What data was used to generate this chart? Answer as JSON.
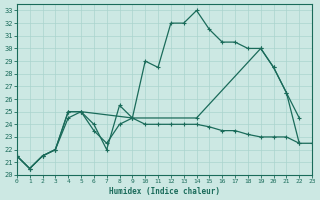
{
  "xlabel": "Humidex (Indice chaleur)",
  "bg_color": "#cce8e3",
  "grid_color": "#aad4ce",
  "line_color": "#1a6b5a",
  "xlim": [
    0,
    23
  ],
  "ylim": [
    20,
    33.5
  ],
  "xticks": [
    0,
    1,
    2,
    3,
    4,
    5,
    6,
    7,
    8,
    9,
    10,
    11,
    12,
    13,
    14,
    15,
    16,
    17,
    18,
    19,
    20,
    21,
    22,
    23
  ],
  "yticks": [
    20,
    21,
    22,
    23,
    24,
    25,
    26,
    27,
    28,
    29,
    30,
    31,
    32,
    33
  ],
  "line1_x": [
    0,
    1,
    2,
    3,
    4,
    5,
    6,
    7,
    8,
    9,
    10,
    11,
    12,
    13,
    14,
    15,
    16,
    17,
    18,
    19,
    20,
    21,
    22
  ],
  "line1_y": [
    21.5,
    20.5,
    21.5,
    22.0,
    25.0,
    25.0,
    24.0,
    22.0,
    25.5,
    24.5,
    29.0,
    28.5,
    32.0,
    32.0,
    33.0,
    31.5,
    30.5,
    30.5,
    30.0,
    30.0,
    28.5,
    26.5,
    22.5
  ],
  "line2_x": [
    0,
    1,
    2,
    3,
    4,
    5,
    9,
    14,
    19,
    20,
    21,
    22
  ],
  "line2_y": [
    21.5,
    20.5,
    21.5,
    22.0,
    25.0,
    25.0,
    24.5,
    24.5,
    30.0,
    28.5,
    26.5,
    24.5
  ],
  "line3_x": [
    0,
    1,
    2,
    3,
    4,
    5,
    6,
    7,
    8,
    9,
    10,
    11,
    12,
    13,
    14,
    15,
    16,
    17,
    18,
    19,
    20,
    21,
    22,
    23
  ],
  "line3_y": [
    21.5,
    20.5,
    21.5,
    22.0,
    24.5,
    25.0,
    23.5,
    22.5,
    24.0,
    24.5,
    24.0,
    24.0,
    24.0,
    24.0,
    24.0,
    23.8,
    23.5,
    23.5,
    23.2,
    23.0,
    23.0,
    23.0,
    22.5,
    22.5
  ]
}
